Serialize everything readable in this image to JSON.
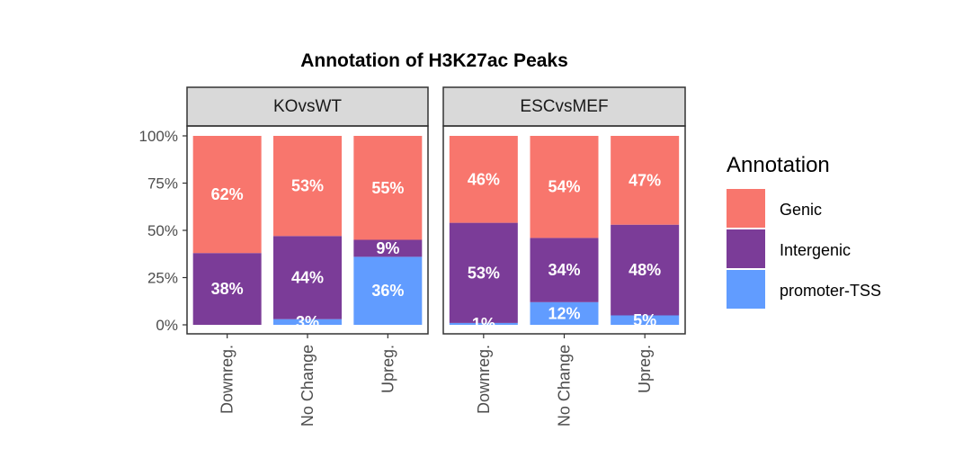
{
  "chart_data": {
    "type": "bar",
    "stacked": true,
    "title": "Annotation of H3K27ac Peaks",
    "ylim": [
      0,
      100
    ],
    "y_ticks": [
      "0%",
      "25%",
      "50%",
      "75%",
      "100%"
    ],
    "categories": [
      "Downreg.",
      "No Change",
      "Upreg."
    ],
    "facets": [
      {
        "name": "KOvsWT",
        "series": [
          {
            "name": "Genic",
            "values": [
              62,
              53,
              55
            ]
          },
          {
            "name": "Intergenic",
            "values": [
              38,
              44,
              9
            ]
          },
          {
            "name": "promoter-TSS",
            "values": [
              0,
              3,
              36
            ]
          }
        ]
      },
      {
        "name": "ESCvsMEF",
        "series": [
          {
            "name": "Genic",
            "values": [
              46,
              54,
              47
            ]
          },
          {
            "name": "Intergenic",
            "values": [
              53,
              34,
              48
            ]
          },
          {
            "name": "promoter-TSS",
            "values": [
              1,
              12,
              5
            ]
          }
        ]
      }
    ],
    "legend": {
      "title": "Annotation",
      "position": "right",
      "items": [
        {
          "name": "Genic",
          "color": "#F8766D"
        },
        {
          "name": "Intergenic",
          "color": "#7B3C98"
        },
        {
          "name": "promoter-TSS",
          "color": "#619CFF"
        }
      ]
    },
    "grid": false
  }
}
